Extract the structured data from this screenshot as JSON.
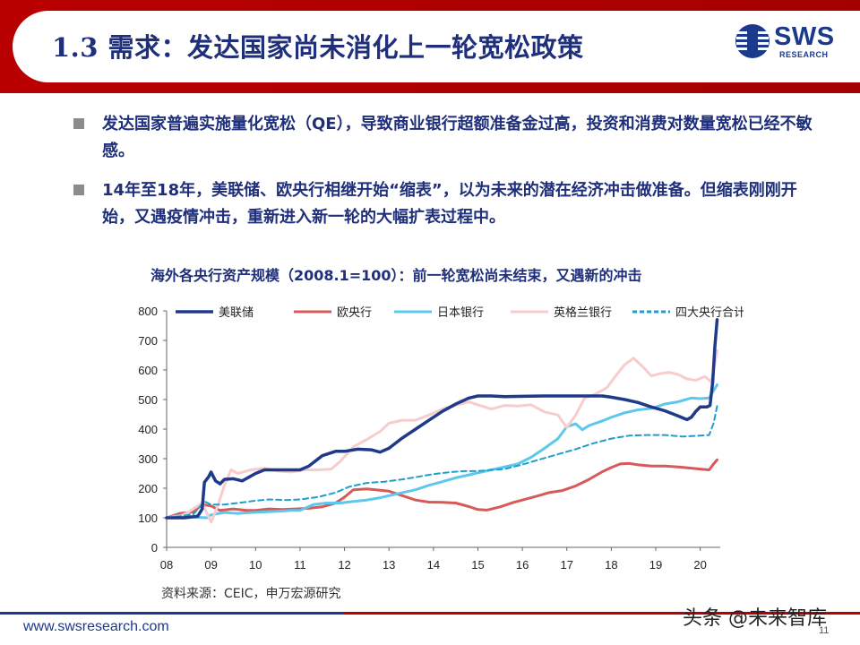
{
  "slide": {
    "title": "1.3 需求：发达国家尚未消化上一轮宽松政策",
    "logo_text": "SWS",
    "logo_sub": "RESEARCH",
    "brand_colors": {
      "navy": "#1f2f7a",
      "red": "#b90000"
    }
  },
  "bullets": [
    {
      "text": "发达国家普遍实施量化宽松（QE），导致商业银行超额准备金过高，投资和消费对数量宽松已经不敏感。"
    },
    {
      "text": "14年至18年，美联储、欧央行相继开始“缩表”，以为未来的潜在经济冲击做准备。但缩表刚刚开始，又遇疫情冲击，重新进入新一轮的大幅扩表过程中。"
    }
  ],
  "source": "资料来源：CEIC，申万宏源研究",
  "footer": {
    "url": "www.swsresearch.com",
    "page_number": "11",
    "watermark": "头条 @未来智库"
  },
  "chart_data": {
    "type": "line",
    "title": "海外各央行资产规模（2008.1=100）：前一轮宽松尚未结束，又遇新的冲击",
    "xlabel": "",
    "ylabel": "",
    "x_range": [
      2008,
      2020.45
    ],
    "xticks": [
      {
        "value": 2008,
        "label": "08"
      },
      {
        "value": 2009,
        "label": "09"
      },
      {
        "value": 2010,
        "label": "10"
      },
      {
        "value": 2011,
        "label": "11"
      },
      {
        "value": 2012,
        "label": "12"
      },
      {
        "value": 2013,
        "label": "13"
      },
      {
        "value": 2014,
        "label": "14"
      },
      {
        "value": 2015,
        "label": "15"
      },
      {
        "value": 2016,
        "label": "16"
      },
      {
        "value": 2017,
        "label": "17"
      },
      {
        "value": 2018,
        "label": "18"
      },
      {
        "value": 2019,
        "label": "19"
      },
      {
        "value": 2020,
        "label": "20"
      }
    ],
    "ylim": [
      0,
      800
    ],
    "yticks": [
      0,
      100,
      200,
      300,
      400,
      500,
      600,
      700,
      800
    ],
    "grid": false,
    "legend_position": "top",
    "series": [
      {
        "name": "美联储",
        "color": "#1f3a8a",
        "dash": "",
        "width": 3.5,
        "points": [
          [
            2008.0,
            100
          ],
          [
            2008.4,
            100
          ],
          [
            2008.7,
            105
          ],
          [
            2008.8,
            130
          ],
          [
            2008.85,
            220
          ],
          [
            2008.95,
            240
          ],
          [
            2009.0,
            255
          ],
          [
            2009.1,
            225
          ],
          [
            2009.2,
            215
          ],
          [
            2009.3,
            230
          ],
          [
            2009.5,
            232
          ],
          [
            2009.7,
            225
          ],
          [
            2010.0,
            250
          ],
          [
            2010.2,
            262
          ],
          [
            2010.5,
            262
          ],
          [
            2010.8,
            262
          ],
          [
            2011.0,
            262
          ],
          [
            2011.2,
            275
          ],
          [
            2011.5,
            310
          ],
          [
            2011.8,
            325
          ],
          [
            2012.0,
            325
          ],
          [
            2012.3,
            332
          ],
          [
            2012.6,
            330
          ],
          [
            2012.8,
            322
          ],
          [
            2013.0,
            335
          ],
          [
            2013.3,
            370
          ],
          [
            2013.6,
            400
          ],
          [
            2013.9,
            430
          ],
          [
            2014.2,
            460
          ],
          [
            2014.5,
            485
          ],
          [
            2014.8,
            505
          ],
          [
            2015.0,
            512
          ],
          [
            2015.3,
            512
          ],
          [
            2015.6,
            510
          ],
          [
            2016.0,
            511
          ],
          [
            2016.5,
            512
          ],
          [
            2017.0,
            512
          ],
          [
            2017.5,
            512
          ],
          [
            2017.8,
            512
          ],
          [
            2018.0,
            508
          ],
          [
            2018.3,
            500
          ],
          [
            2018.6,
            490
          ],
          [
            2018.9,
            475
          ],
          [
            2019.2,
            462
          ],
          [
            2019.5,
            445
          ],
          [
            2019.7,
            432
          ],
          [
            2019.8,
            440
          ],
          [
            2019.9,
            460
          ],
          [
            2020.0,
            475
          ],
          [
            2020.1,
            475
          ],
          [
            2020.15,
            475
          ],
          [
            2020.22,
            480
          ],
          [
            2020.28,
            560
          ],
          [
            2020.33,
            680
          ],
          [
            2020.38,
            770
          ]
        ]
      },
      {
        "name": "欧央行",
        "color": "#d65a5a",
        "dash": "",
        "width": 3,
        "points": [
          [
            2008.0,
            100
          ],
          [
            2008.3,
            115
          ],
          [
            2008.6,
            120
          ],
          [
            2008.8,
            145
          ],
          [
            2009.0,
            140
          ],
          [
            2009.2,
            125
          ],
          [
            2009.5,
            130
          ],
          [
            2009.8,
            125
          ],
          [
            2010.0,
            125
          ],
          [
            2010.3,
            130
          ],
          [
            2010.6,
            128
          ],
          [
            2010.9,
            130
          ],
          [
            2011.2,
            132
          ],
          [
            2011.5,
            137
          ],
          [
            2011.8,
            150
          ],
          [
            2012.0,
            170
          ],
          [
            2012.2,
            195
          ],
          [
            2012.5,
            198
          ],
          [
            2012.8,
            193
          ],
          [
            2013.0,
            190
          ],
          [
            2013.3,
            175
          ],
          [
            2013.6,
            160
          ],
          [
            2013.9,
            153
          ],
          [
            2014.2,
            152
          ],
          [
            2014.5,
            150
          ],
          [
            2014.8,
            138
          ],
          [
            2015.0,
            128
          ],
          [
            2015.2,
            126
          ],
          [
            2015.5,
            137
          ],
          [
            2015.8,
            152
          ],
          [
            2016.0,
            160
          ],
          [
            2016.3,
            172
          ],
          [
            2016.6,
            185
          ],
          [
            2016.9,
            192
          ],
          [
            2017.2,
            208
          ],
          [
            2017.5,
            230
          ],
          [
            2017.8,
            256
          ],
          [
            2018.0,
            270
          ],
          [
            2018.2,
            282
          ],
          [
            2018.4,
            284
          ],
          [
            2018.6,
            279
          ],
          [
            2018.9,
            275
          ],
          [
            2019.2,
            275
          ],
          [
            2019.5,
            272
          ],
          [
            2019.8,
            268
          ],
          [
            2020.0,
            265
          ],
          [
            2020.2,
            262
          ],
          [
            2020.3,
            282
          ],
          [
            2020.38,
            296
          ]
        ]
      },
      {
        "name": "日本银行",
        "color": "#5cc8ec",
        "dash": "",
        "width": 3,
        "points": [
          [
            2008.0,
            100
          ],
          [
            2008.3,
            108
          ],
          [
            2008.6,
            102
          ],
          [
            2008.9,
            100
          ],
          [
            2009.0,
            110
          ],
          [
            2009.3,
            118
          ],
          [
            2009.6,
            115
          ],
          [
            2009.9,
            118
          ],
          [
            2010.2,
            120
          ],
          [
            2010.5,
            122
          ],
          [
            2010.8,
            125
          ],
          [
            2011.0,
            125
          ],
          [
            2011.3,
            145
          ],
          [
            2011.6,
            150
          ],
          [
            2011.9,
            150
          ],
          [
            2012.2,
            155
          ],
          [
            2012.5,
            160
          ],
          [
            2012.8,
            168
          ],
          [
            2013.0,
            175
          ],
          [
            2013.3,
            185
          ],
          [
            2013.6,
            195
          ],
          [
            2013.9,
            210
          ],
          [
            2014.2,
            222
          ],
          [
            2014.5,
            235
          ],
          [
            2014.8,
            245
          ],
          [
            2015.0,
            252
          ],
          [
            2015.3,
            262
          ],
          [
            2015.6,
            272
          ],
          [
            2015.9,
            282
          ],
          [
            2016.2,
            305
          ],
          [
            2016.5,
            335
          ],
          [
            2016.8,
            368
          ],
          [
            2017.0,
            408
          ],
          [
            2017.2,
            418
          ],
          [
            2017.35,
            398
          ],
          [
            2017.5,
            412
          ],
          [
            2017.8,
            428
          ],
          [
            2018.0,
            440
          ],
          [
            2018.3,
            455
          ],
          [
            2018.6,
            465
          ],
          [
            2018.9,
            470
          ],
          [
            2019.2,
            485
          ],
          [
            2019.5,
            492
          ],
          [
            2019.8,
            505
          ],
          [
            2020.0,
            503
          ],
          [
            2020.2,
            505
          ],
          [
            2020.38,
            550
          ]
        ]
      },
      {
        "name": "英格兰银行",
        "color": "#f6cccc",
        "dash": "",
        "width": 3,
        "points": [
          [
            2008.0,
            100
          ],
          [
            2008.3,
            105
          ],
          [
            2008.5,
            120
          ],
          [
            2008.8,
            150
          ],
          [
            2009.0,
            85
          ],
          [
            2009.15,
            140
          ],
          [
            2009.3,
            210
          ],
          [
            2009.45,
            262
          ],
          [
            2009.6,
            250
          ],
          [
            2009.9,
            262
          ],
          [
            2010.2,
            268
          ],
          [
            2010.5,
            258
          ],
          [
            2010.8,
            255
          ],
          [
            2011.1,
            262
          ],
          [
            2011.4,
            262
          ],
          [
            2011.7,
            265
          ],
          [
            2011.9,
            290
          ],
          [
            2012.2,
            340
          ],
          [
            2012.5,
            365
          ],
          [
            2012.8,
            392
          ],
          [
            2013.0,
            420
          ],
          [
            2013.3,
            430
          ],
          [
            2013.6,
            430
          ],
          [
            2013.9,
            448
          ],
          [
            2014.2,
            468
          ],
          [
            2014.5,
            480
          ],
          [
            2014.8,
            492
          ],
          [
            2015.0,
            482
          ],
          [
            2015.3,
            468
          ],
          [
            2015.6,
            480
          ],
          [
            2015.9,
            478
          ],
          [
            2016.2,
            482
          ],
          [
            2016.5,
            458
          ],
          [
            2016.8,
            448
          ],
          [
            2017.0,
            405
          ],
          [
            2017.2,
            448
          ],
          [
            2017.4,
            505
          ],
          [
            2017.6,
            515
          ],
          [
            2017.9,
            540
          ],
          [
            2018.1,
            580
          ],
          [
            2018.3,
            618
          ],
          [
            2018.5,
            640
          ],
          [
            2018.7,
            612
          ],
          [
            2018.9,
            580
          ],
          [
            2019.1,
            588
          ],
          [
            2019.3,
            592
          ],
          [
            2019.5,
            585
          ],
          [
            2019.7,
            570
          ],
          [
            2019.9,
            565
          ],
          [
            2020.1,
            578
          ],
          [
            2020.25,
            560
          ],
          [
            2020.38,
            665
          ]
        ]
      },
      {
        "name": "四大央行合计",
        "color": "#1e9fc8",
        "dash": "6,4",
        "width": 2,
        "points": [
          [
            2008.0,
            100
          ],
          [
            2008.3,
            105
          ],
          [
            2008.6,
            112
          ],
          [
            2008.85,
            155
          ],
          [
            2009.0,
            145
          ],
          [
            2009.3,
            145
          ],
          [
            2009.6,
            150
          ],
          [
            2010.0,
            158
          ],
          [
            2010.3,
            162
          ],
          [
            2010.7,
            160
          ],
          [
            2011.0,
            162
          ],
          [
            2011.4,
            170
          ],
          [
            2011.8,
            185
          ],
          [
            2012.1,
            205
          ],
          [
            2012.5,
            218
          ],
          [
            2012.9,
            222
          ],
          [
            2013.3,
            230
          ],
          [
            2013.7,
            240
          ],
          [
            2014.0,
            248
          ],
          [
            2014.4,
            255
          ],
          [
            2014.7,
            258
          ],
          [
            2015.0,
            258
          ],
          [
            2015.3,
            262
          ],
          [
            2015.6,
            265
          ],
          [
            2016.0,
            280
          ],
          [
            2016.4,
            298
          ],
          [
            2016.8,
            315
          ],
          [
            2017.2,
            332
          ],
          [
            2017.6,
            352
          ],
          [
            2018.0,
            368
          ],
          [
            2018.4,
            378
          ],
          [
            2018.8,
            380
          ],
          [
            2019.2,
            380
          ],
          [
            2019.6,
            375
          ],
          [
            2020.0,
            378
          ],
          [
            2020.2,
            380
          ],
          [
            2020.3,
            420
          ],
          [
            2020.38,
            478
          ]
        ]
      }
    ]
  }
}
